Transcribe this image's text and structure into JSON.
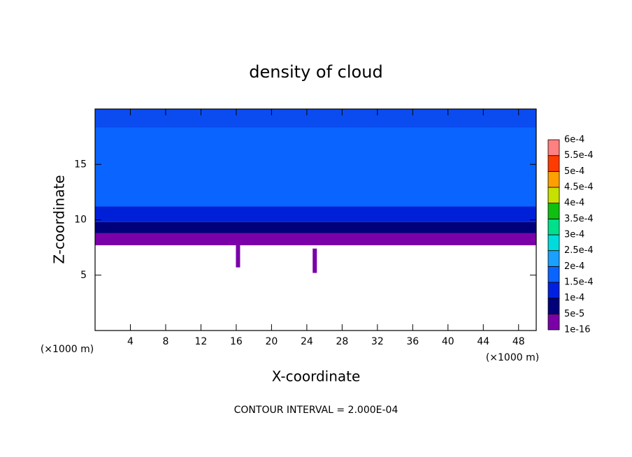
{
  "chart_data": {
    "type": "contour",
    "title": "density of cloud",
    "xlabel": "X-coordinate",
    "ylabel": "Z-coordinate",
    "x_unit": "(×1000 m)",
    "y_unit": "(×1000 m)",
    "footer": "CONTOUR INTERVAL = 2.000E-04",
    "xlim": [
      0,
      50
    ],
    "ylim": [
      0,
      20
    ],
    "xticks": [
      4,
      8,
      12,
      16,
      20,
      24,
      28,
      32,
      36,
      40,
      44,
      48
    ],
    "yticks": [
      5,
      10,
      15
    ],
    "bands": [
      {
        "z": [
          7.7,
          8.8
        ],
        "color": "#7a00a8"
      },
      {
        "z": [
          8.8,
          9.8
        ],
        "color": "#00007a"
      },
      {
        "z": [
          9.8,
          11.2
        ],
        "color": "#0020d8"
      },
      {
        "z": [
          11.2,
          18.3
        ],
        "color": "#0a64ff"
      },
      {
        "z": [
          18.3,
          20
        ],
        "color": "#0a4cf0"
      }
    ],
    "patches": [
      {
        "x": 16.2,
        "z": [
          5.7,
          7.7
        ],
        "color": "#7a00a8"
      },
      {
        "x": 24.9,
        "z": [
          5.2,
          7.4
        ],
        "color": "#7a00a8"
      }
    ],
    "colorbar": {
      "levels": [
        1e-16,
        {
          "value": 5e-05,
          "label": "5e-5"
        },
        {
          "value": 0.0001,
          "label": "1e-4"
        },
        {
          "value": 0.00015,
          "label": "1.5e-4"
        },
        {
          "value": 0.0002,
          "label": "2e-4"
        },
        {
          "value": 0.00025,
          "label": "2.5e-4"
        },
        {
          "value": 0.0003,
          "label": "3e-4"
        },
        {
          "value": 0.00035,
          "label": "3.5e-4"
        },
        {
          "value": 0.0004,
          "label": "4e-4"
        },
        {
          "value": 0.00045,
          "label": "4.5e-4"
        },
        {
          "value": 0.0005,
          "label": "5e-4"
        },
        {
          "value": 0.00055,
          "label": "5.5e-4"
        },
        {
          "value": 0.0006,
          "label": "6e-4"
        }
      ],
      "colors": [
        "#7a00a8",
        "#00007a",
        "#0020e0",
        "#0a64ff",
        "#1aa0ff",
        "#00dcdc",
        "#00e08c",
        "#10c010",
        "#c8e000",
        "#ffa000",
        "#ff3c00",
        "#ff8080"
      ]
    }
  }
}
